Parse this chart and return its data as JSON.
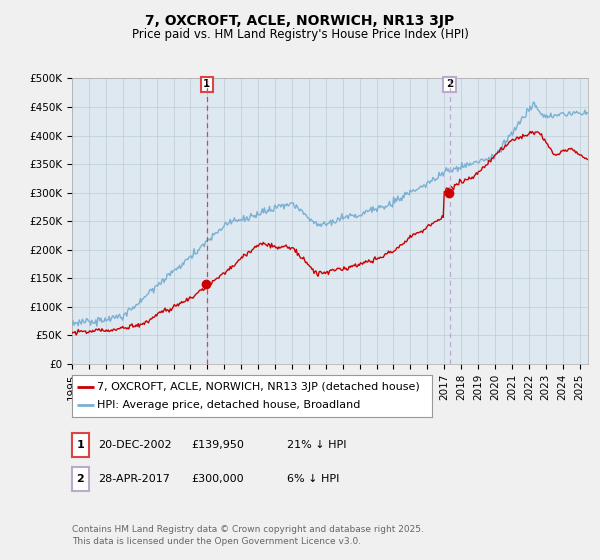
{
  "title": "7, OXCROFT, ACLE, NORWICH, NR13 3JP",
  "subtitle": "Price paid vs. HM Land Registry's House Price Index (HPI)",
  "ylim": [
    0,
    500000
  ],
  "xlim_start": 1995.0,
  "xlim_end": 2025.5,
  "sale1": {
    "date": "20-DEC-2002",
    "price": 139950,
    "year": 2002.97,
    "label": "1",
    "note": "21% ↓ HPI"
  },
  "sale2": {
    "date": "28-APR-2017",
    "price": 300000,
    "year": 2017.32,
    "label": "2",
    "note": "6% ↓ HPI"
  },
  "legend1": "7, OXCROFT, ACLE, NORWICH, NR13 3JP (detached house)",
  "legend2": "HPI: Average price, detached house, Broadland",
  "footer": "Contains HM Land Registry data © Crown copyright and database right 2025.\nThis data is licensed under the Open Government Licence v3.0.",
  "line_color_red": "#cc0000",
  "line_color_blue": "#7ab0d4",
  "vline_color1": "#dd4444",
  "vline_color2": "#bbaacc",
  "background_color": "#f0f0f0",
  "plot_bg_color": "#dde8f0",
  "grid_color": "#c0ccd4",
  "title_fontsize": 10,
  "subtitle_fontsize": 8.5,
  "tick_fontsize": 7.5,
  "legend_fontsize": 8,
  "footer_fontsize": 6.5
}
